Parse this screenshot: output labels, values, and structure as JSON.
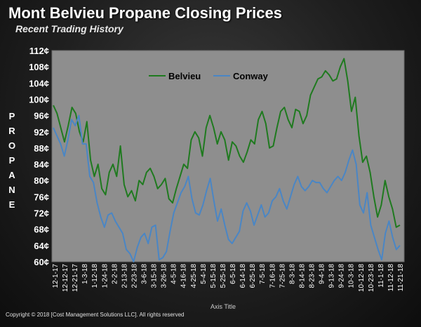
{
  "chart_data": {
    "type": "line",
    "title": "Mont Belvieu Propane Closing Prices",
    "subtitle": "Recent Trading History",
    "ylabel": "PROPANE",
    "xlabel": "Axis Title",
    "ylim": [
      60,
      112
    ],
    "yticks": [
      "112¢",
      "108¢",
      "104¢",
      "100¢",
      "96¢",
      "92¢",
      "88¢",
      "84¢",
      "80¢",
      "76¢",
      "72¢",
      "68¢",
      "64¢",
      "60¢"
    ],
    "x_ticks": [
      "12-1-17",
      "12-12-17",
      "12-21-17",
      "1-3-18",
      "1-12-18",
      "1-24-18",
      "2-2-18",
      "2-13-18",
      "2-23-18",
      "3-6-18",
      "3-15-18",
      "3-26-18",
      "4-5-18",
      "4-16-18",
      "4-25-18",
      "5-4-18",
      "5-15-18",
      "5-25-18",
      "6-5-18",
      "6-14-18",
      "6-25-18",
      "7-5-18",
      "7-16-18",
      "7-25-18",
      "8-3-18",
      "8-14-18",
      "8-23-18",
      "9-4-18",
      "9-13-18",
      "9-24-18",
      "10-3-18",
      "10-12-18",
      "10-23-18",
      "11-1-18",
      "11-12-18",
      "11-21-18"
    ],
    "legend_position": "top-left",
    "grid": false,
    "series": [
      {
        "name": "Belvieu",
        "color": "#1f7a1f",
        "values": [
          98.5,
          96.5,
          93,
          89.5,
          93.5,
          98,
          96.5,
          92,
          89.5,
          94.5,
          85,
          81,
          84,
          78,
          76.5,
          82,
          84,
          81,
          88.5,
          79,
          76,
          77.5,
          75,
          80,
          79,
          82,
          83,
          81,
          78,
          79,
          80.5,
          75.5,
          74.5,
          78,
          81,
          84,
          83,
          90,
          92,
          90.5,
          86,
          93,
          96,
          93,
          89,
          92,
          90,
          85,
          89.5,
          88.5,
          86,
          84.5,
          87,
          90,
          89,
          95,
          97,
          94,
          88,
          88.5,
          93,
          97,
          98,
          95,
          93,
          97.5,
          97,
          94,
          96,
          101,
          103,
          105,
          105.5,
          107,
          106,
          104.5,
          105,
          108,
          110,
          104.5,
          97,
          100.5,
          91,
          84.5,
          86,
          82,
          76,
          71,
          74,
          80,
          76,
          73,
          68.5,
          69
        ]
      },
      {
        "name": "Conway",
        "color": "#4a86c5",
        "values": [
          93,
          91,
          89,
          86,
          90,
          95,
          93.5,
          96,
          89,
          89,
          81,
          79.5,
          74.5,
          71,
          68.5,
          71.5,
          72,
          70,
          68.5,
          67,
          63,
          62,
          60,
          63.5,
          66,
          67,
          64.5,
          68.5,
          69,
          60.5,
          61,
          62.5,
          67.5,
          72,
          74.5,
          77,
          78.5,
          81,
          75.5,
          72,
          71.5,
          74,
          77.5,
          80.5,
          75,
          70,
          73,
          69,
          65.5,
          64.5,
          66,
          67.5,
          72.5,
          74.5,
          72.5,
          69,
          71.5,
          74,
          71,
          72,
          75,
          76,
          78,
          75,
          73,
          76,
          79,
          81,
          78.5,
          77.5,
          78.5,
          80,
          79.5,
          79.5,
          78,
          77,
          78.5,
          80,
          81,
          80,
          82,
          85,
          87.5,
          84,
          74,
          72,
          77,
          69,
          66,
          63,
          60.5,
          67,
          70,
          66,
          63,
          64
        ]
      }
    ]
  }
}
